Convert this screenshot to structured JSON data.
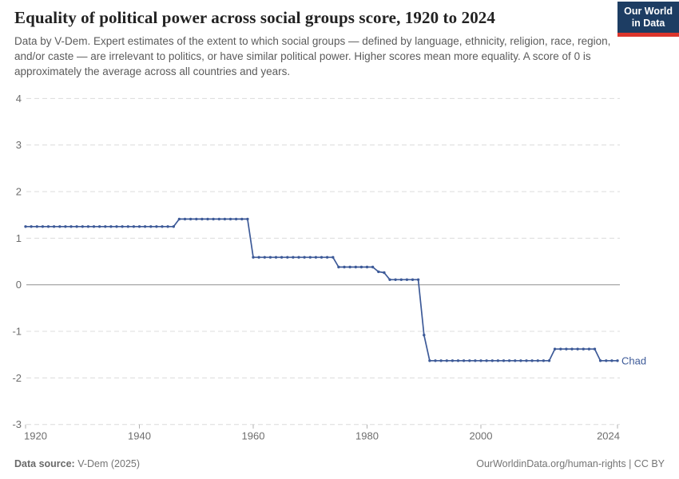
{
  "header": {
    "title": "Equality of political power across social groups score, 1920 to 2024",
    "subtitle": "Data by V-Dem. Expert estimates of the extent to which social groups — defined by language, ethnicity, religion, race, region, and/or caste — are irrelevant to politics, or have similar political power. Higher scores mean more equality. A score of 0 is approximately the average across all countries and years.",
    "logo": {
      "line1": "Our World",
      "line2": "in Data"
    }
  },
  "colors": {
    "series": "#3d5a98",
    "grid": "#dcdcdc",
    "zero_line": "#8f8f8f",
    "axis_text": "#6e6e6e",
    "tick": "#b0b0b0",
    "logo_bg": "#1d3d63",
    "logo_accent": "#dc352c"
  },
  "chart_data": {
    "type": "line",
    "title": "Equality of political power across social groups score, 1920 to 2024",
    "xlabel": "",
    "ylabel": "",
    "ylim": [
      -3,
      4
    ],
    "xlim": [
      1920,
      2024
    ],
    "grid": "horizontal-dashed",
    "zero_line": true,
    "legend_position": "end-of-line-label",
    "yticks": [
      4,
      3,
      2,
      1,
      0,
      -1,
      -2,
      -3
    ],
    "xticks": [
      1920,
      1940,
      1960,
      1980,
      2000,
      2024
    ],
    "series": [
      {
        "name": "Chad",
        "color": "#3d5a98",
        "points": [
          [
            1920,
            1.25
          ],
          [
            1921,
            1.25
          ],
          [
            1922,
            1.25
          ],
          [
            1923,
            1.25
          ],
          [
            1924,
            1.25
          ],
          [
            1925,
            1.25
          ],
          [
            1926,
            1.25
          ],
          [
            1927,
            1.25
          ],
          [
            1928,
            1.25
          ],
          [
            1929,
            1.25
          ],
          [
            1930,
            1.25
          ],
          [
            1931,
            1.25
          ],
          [
            1932,
            1.25
          ],
          [
            1933,
            1.25
          ],
          [
            1934,
            1.25
          ],
          [
            1935,
            1.25
          ],
          [
            1936,
            1.25
          ],
          [
            1937,
            1.25
          ],
          [
            1938,
            1.25
          ],
          [
            1939,
            1.25
          ],
          [
            1940,
            1.25
          ],
          [
            1941,
            1.25
          ],
          [
            1942,
            1.25
          ],
          [
            1943,
            1.25
          ],
          [
            1944,
            1.25
          ],
          [
            1945,
            1.25
          ],
          [
            1946,
            1.25
          ],
          [
            1947,
            1.41
          ],
          [
            1948,
            1.41
          ],
          [
            1949,
            1.41
          ],
          [
            1950,
            1.41
          ],
          [
            1951,
            1.41
          ],
          [
            1952,
            1.41
          ],
          [
            1953,
            1.41
          ],
          [
            1954,
            1.41
          ],
          [
            1955,
            1.41
          ],
          [
            1956,
            1.41
          ],
          [
            1957,
            1.41
          ],
          [
            1958,
            1.41
          ],
          [
            1959,
            1.41
          ],
          [
            1960,
            0.59
          ],
          [
            1961,
            0.59
          ],
          [
            1962,
            0.59
          ],
          [
            1963,
            0.59
          ],
          [
            1964,
            0.59
          ],
          [
            1965,
            0.59
          ],
          [
            1966,
            0.59
          ],
          [
            1967,
            0.59
          ],
          [
            1968,
            0.59
          ],
          [
            1969,
            0.59
          ],
          [
            1970,
            0.59
          ],
          [
            1971,
            0.59
          ],
          [
            1972,
            0.59
          ],
          [
            1973,
            0.59
          ],
          [
            1974,
            0.59
          ],
          [
            1975,
            0.38
          ],
          [
            1976,
            0.38
          ],
          [
            1977,
            0.38
          ],
          [
            1978,
            0.38
          ],
          [
            1979,
            0.38
          ],
          [
            1980,
            0.38
          ],
          [
            1981,
            0.38
          ],
          [
            1982,
            0.28
          ],
          [
            1983,
            0.26
          ],
          [
            1984,
            0.11
          ],
          [
            1985,
            0.11
          ],
          [
            1986,
            0.11
          ],
          [
            1987,
            0.11
          ],
          [
            1988,
            0.11
          ],
          [
            1989,
            0.11
          ],
          [
            1990,
            -1.08
          ],
          [
            1991,
            -1.63
          ],
          [
            1992,
            -1.63
          ],
          [
            1993,
            -1.63
          ],
          [
            1994,
            -1.63
          ],
          [
            1995,
            -1.63
          ],
          [
            1996,
            -1.63
          ],
          [
            1997,
            -1.63
          ],
          [
            1998,
            -1.63
          ],
          [
            1999,
            -1.63
          ],
          [
            2000,
            -1.63
          ],
          [
            2001,
            -1.63
          ],
          [
            2002,
            -1.63
          ],
          [
            2003,
            -1.63
          ],
          [
            2004,
            -1.63
          ],
          [
            2005,
            -1.63
          ],
          [
            2006,
            -1.63
          ],
          [
            2007,
            -1.63
          ],
          [
            2008,
            -1.63
          ],
          [
            2009,
            -1.63
          ],
          [
            2010,
            -1.63
          ],
          [
            2011,
            -1.63
          ],
          [
            2012,
            -1.63
          ],
          [
            2013,
            -1.38
          ],
          [
            2014,
            -1.38
          ],
          [
            2015,
            -1.38
          ],
          [
            2016,
            -1.38
          ],
          [
            2017,
            -1.38
          ],
          [
            2018,
            -1.38
          ],
          [
            2019,
            -1.38
          ],
          [
            2020,
            -1.38
          ],
          [
            2021,
            -1.63
          ],
          [
            2022,
            -1.63
          ],
          [
            2023,
            -1.63
          ],
          [
            2024,
            -1.63
          ]
        ]
      }
    ]
  },
  "footer": {
    "source_label": "Data source:",
    "source_value": " V-Dem (2025)",
    "right_text": "OurWorldinData.org/human-rights | CC BY"
  }
}
